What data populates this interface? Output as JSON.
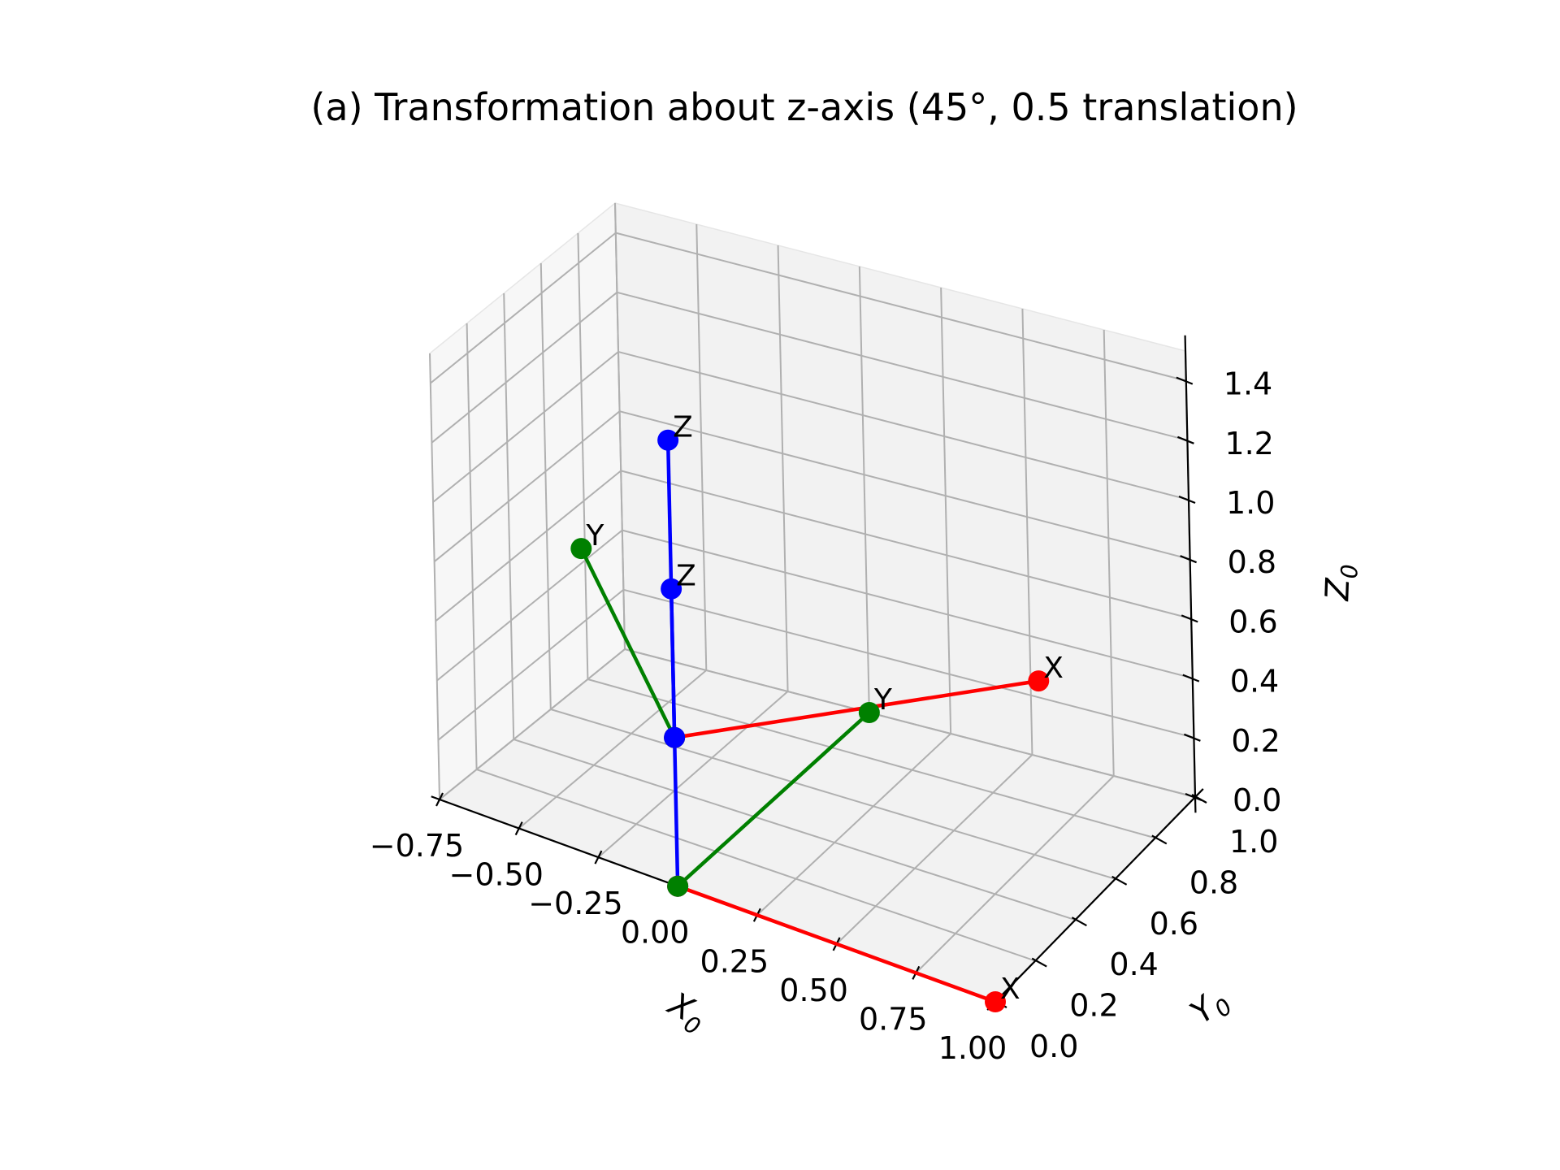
{
  "chart_data": {
    "type": "line",
    "projection": "3d",
    "title": "(a) Transformation about z-axis (45°, 0.5 translation)",
    "xlabel": "X",
    "xlabel_sub": "0",
    "ylabel": "Y",
    "ylabel_sub": "0",
    "zlabel": "Z",
    "zlabel_sub": "0",
    "xlim": [
      -0.75,
      1.0
    ],
    "ylim": [
      0.0,
      1.0
    ],
    "zlim": [
      0.0,
      1.5
    ],
    "x_ticks": [
      "−0.75",
      "−0.50",
      "−0.25",
      "0.00",
      "0.25",
      "0.50",
      "0.75",
      "1.00"
    ],
    "y_ticks": [
      "0.0",
      "0.2",
      "0.4",
      "0.6",
      "0.8",
      "1.0"
    ],
    "z_ticks": [
      "0.0",
      "0.2",
      "0.4",
      "0.6",
      "0.8",
      "1.0",
      "1.2",
      "1.4"
    ],
    "grid": true,
    "colors": {
      "x_axis": "#ff0000",
      "y_axis": "#008000",
      "z_axis": "#0000ff",
      "grid": "#b0b0b0",
      "pane": "#f2f2f2"
    },
    "series": [
      {
        "color": "red",
        "label": "X",
        "points": [
          [
            0,
            0,
            0
          ],
          [
            1,
            0,
            0
          ]
        ]
      },
      {
        "color": "green",
        "label": "Y",
        "points": [
          [
            0,
            0,
            0
          ],
          [
            0,
            1,
            0
          ]
        ]
      },
      {
        "color": "blue",
        "label": "Z",
        "points": [
          [
            0,
            0,
            0
          ],
          [
            0,
            0,
            1
          ]
        ]
      },
      {
        "color": "red",
        "label": "X",
        "points": [
          [
            0,
            0,
            0.5
          ],
          [
            0.707,
            0.707,
            0.5
          ]
        ]
      },
      {
        "color": "green",
        "label": "Y",
        "points": [
          [
            0,
            0,
            0.5
          ],
          [
            -0.707,
            0.707,
            0.5
          ]
        ]
      },
      {
        "color": "blue",
        "label": "Z",
        "points": [
          [
            0,
            0,
            0.5
          ],
          [
            0,
            0,
            1.5
          ]
        ]
      }
    ]
  }
}
